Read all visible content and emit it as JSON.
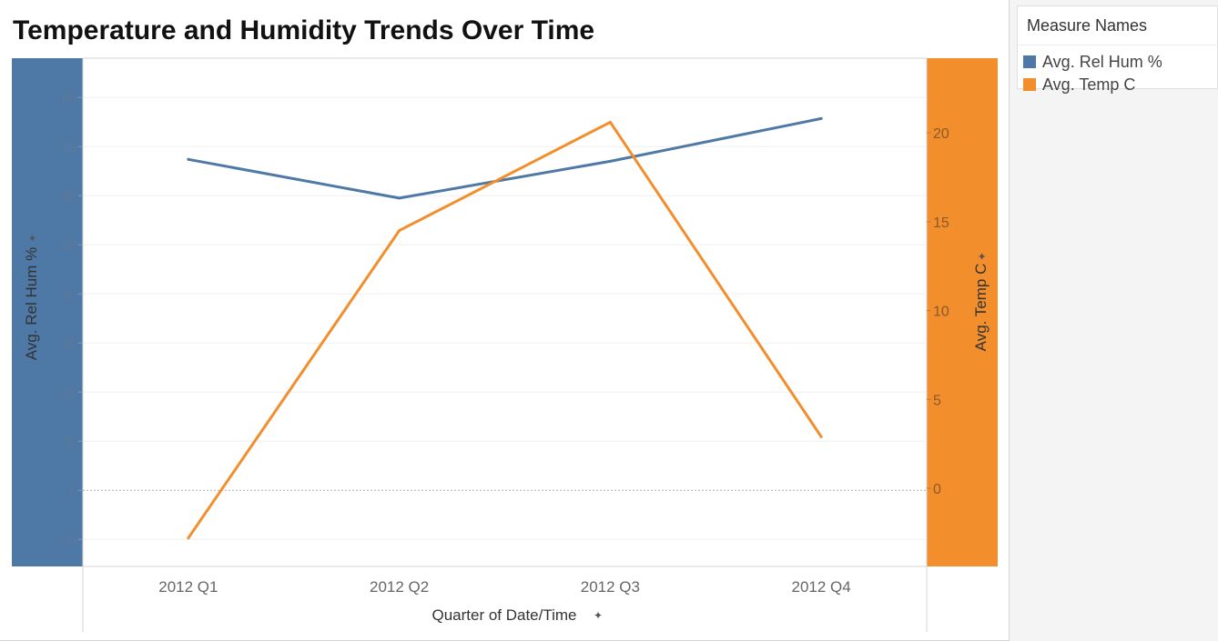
{
  "title": "Temperature and Humidity Trends Over Time",
  "legend": {
    "title": "Measure Names",
    "items": [
      {
        "label": "Avg. Rel Hum %",
        "color": "#4e79a7"
      },
      {
        "label": "Avg. Temp C",
        "color": "#f28e2b"
      }
    ]
  },
  "chart_data": {
    "type": "line",
    "title": "Temperature and Humidity Trends Over Time",
    "xlabel": "Quarter of Date/Time",
    "categories": [
      "2012 Q1",
      "2012 Q2",
      "2012 Q3",
      "2012 Q4"
    ],
    "series": [
      {
        "name": "Avg. Rel Hum %",
        "axis": "left",
        "color": "#4e79a7",
        "values": [
          67.4,
          59.5,
          67.0,
          75.7
        ]
      },
      {
        "name": "Avg. Temp C",
        "axis": "right",
        "color": "#f28e2b",
        "values": [
          -2.8,
          14.5,
          20.6,
          2.9
        ]
      }
    ],
    "y_left": {
      "label": "Avg. Rel Hum %",
      "ticks": [
        -10,
        0,
        10,
        20,
        30,
        40,
        50,
        60,
        70,
        80
      ],
      "range": [
        -15.5,
        88
      ]
    },
    "y_right": {
      "label": "Avg. Temp C",
      "ticks": [
        0,
        5,
        10,
        15,
        20
      ],
      "range": [
        -4.4,
        24.2
      ]
    },
    "grid": true,
    "legend_position": "right"
  }
}
